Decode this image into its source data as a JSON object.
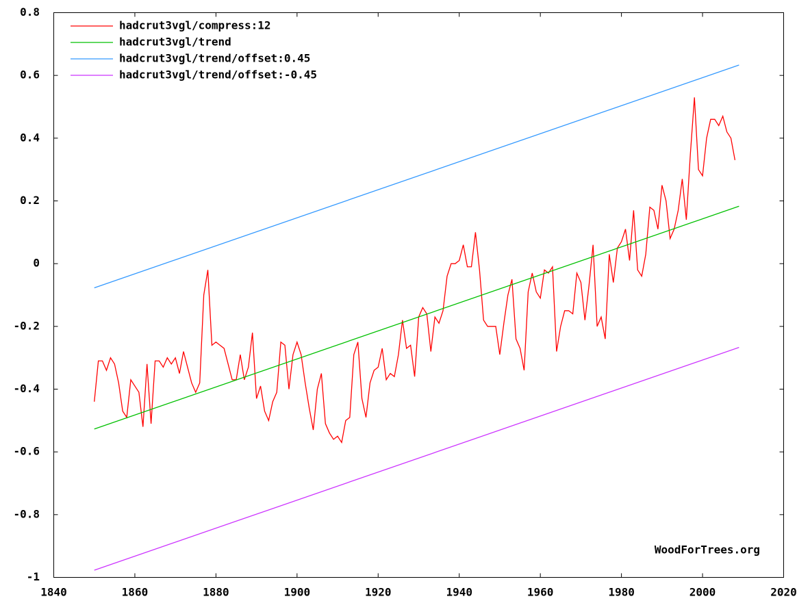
{
  "chart_data": {
    "type": "line",
    "watermark": "WoodForTrees.org",
    "xlim": [
      1840,
      2020
    ],
    "xticks": [
      1840,
      1860,
      1880,
      1900,
      1920,
      1940,
      1960,
      1980,
      2000,
      2020
    ],
    "ylim": [
      -1,
      0.8
    ],
    "yticks": [
      -1,
      -0.8,
      -0.6,
      -0.4,
      -0.2,
      0,
      0.2,
      0.4,
      0.6,
      0.8
    ],
    "grid": false,
    "legend": "top-left",
    "series": [
      {
        "name": "hadcrut3vgl/compress:12",
        "color": "#ff0000",
        "x": [
          1850,
          1851,
          1852,
          1853,
          1854,
          1855,
          1856,
          1857,
          1858,
          1859,
          1860,
          1861,
          1862,
          1863,
          1864,
          1865,
          1866,
          1867,
          1868,
          1869,
          1870,
          1871,
          1872,
          1873,
          1874,
          1875,
          1876,
          1877,
          1878,
          1879,
          1880,
          1881,
          1882,
          1883,
          1884,
          1885,
          1886,
          1887,
          1888,
          1889,
          1890,
          1891,
          1892,
          1893,
          1894,
          1895,
          1896,
          1897,
          1898,
          1899,
          1900,
          1901,
          1902,
          1903,
          1904,
          1905,
          1906,
          1907,
          1908,
          1909,
          1910,
          1911,
          1912,
          1913,
          1914,
          1915,
          1916,
          1917,
          1918,
          1919,
          1920,
          1921,
          1922,
          1923,
          1924,
          1925,
          1926,
          1927,
          1928,
          1929,
          1930,
          1931,
          1932,
          1933,
          1934,
          1935,
          1936,
          1937,
          1938,
          1939,
          1940,
          1941,
          1942,
          1943,
          1944,
          1945,
          1946,
          1947,
          1948,
          1949,
          1950,
          1951,
          1952,
          1953,
          1954,
          1955,
          1956,
          1957,
          1958,
          1959,
          1960,
          1961,
          1962,
          1963,
          1964,
          1965,
          1966,
          1967,
          1968,
          1969,
          1970,
          1971,
          1972,
          1973,
          1974,
          1975,
          1976,
          1977,
          1978,
          1979,
          1980,
          1981,
          1982,
          1983,
          1984,
          1985,
          1986,
          1987,
          1988,
          1989,
          1990,
          1991,
          1992,
          1993,
          1994,
          1995,
          1996,
          1997,
          1998,
          1999,
          2000,
          2001,
          2002,
          2003,
          2004,
          2005,
          2006,
          2007,
          2008
        ],
        "values": [
          -0.44,
          -0.31,
          -0.31,
          -0.34,
          -0.3,
          -0.32,
          -0.38,
          -0.47,
          -0.49,
          -0.37,
          -0.39,
          -0.41,
          -0.52,
          -0.32,
          -0.51,
          -0.31,
          -0.31,
          -0.33,
          -0.3,
          -0.32,
          -0.3,
          -0.35,
          -0.28,
          -0.33,
          -0.38,
          -0.41,
          -0.38,
          -0.1,
          -0.02,
          -0.26,
          -0.25,
          -0.26,
          -0.27,
          -0.32,
          -0.37,
          -0.37,
          -0.29,
          -0.37,
          -0.33,
          -0.22,
          -0.43,
          -0.39,
          -0.47,
          -0.5,
          -0.44,
          -0.41,
          -0.25,
          -0.26,
          -0.4,
          -0.29,
          -0.25,
          -0.29,
          -0.38,
          -0.46,
          -0.53,
          -0.4,
          -0.35,
          -0.51,
          -0.54,
          -0.56,
          -0.55,
          -0.57,
          -0.5,
          -0.49,
          -0.29,
          -0.25,
          -0.43,
          -0.49,
          -0.38,
          -0.34,
          -0.33,
          -0.27,
          -0.37,
          -0.35,
          -0.36,
          -0.29,
          -0.18,
          -0.27,
          -0.26,
          -0.36,
          -0.17,
          -0.14,
          -0.16,
          -0.28,
          -0.17,
          -0.19,
          -0.15,
          -0.04,
          0,
          0,
          0.01,
          0.06,
          -0.01,
          -0.01,
          0.1,
          -0.02,
          -0.18,
          -0.2,
          -0.2,
          -0.2,
          -0.29,
          -0.19,
          -0.1,
          -0.05,
          -0.24,
          -0.27,
          -0.34,
          -0.09,
          -0.03,
          -0.09,
          -0.11,
          -0.02,
          -0.03,
          -0.01,
          -0.28,
          -0.2,
          -0.15,
          -0.15,
          -0.16,
          -0.03,
          -0.06,
          -0.18,
          -0.07,
          0.06,
          -0.2,
          -0.17,
          -0.24,
          0.03,
          -0.06,
          0.05,
          0.07,
          0.11,
          0.01,
          0.17,
          -0.02,
          -0.04,
          0.03,
          0.18,
          0.17,
          0.11,
          0.25,
          0.2,
          0.08,
          0.11,
          0.17,
          0.27,
          0.14,
          0.35,
          0.53,
          0.3,
          0.28,
          0.4,
          0.46,
          0.46,
          0.44,
          0.47,
          0.42,
          0.4,
          0.33
        ]
      },
      {
        "name": "hadcrut3vgl/trend",
        "color": "#00c000",
        "x": [
          1850,
          2009
        ],
        "values": [
          -0.527,
          0.183
        ]
      },
      {
        "name": "hadcrut3vgl/trend/offset:0.45",
        "color": "#3399ff",
        "x": [
          1850,
          2009
        ],
        "values": [
          -0.077,
          0.633
        ]
      },
      {
        "name": "hadcrut3vgl/trend/offset:-0.45",
        "color": "#cc33ff",
        "x": [
          1850,
          2009
        ],
        "values": [
          -0.977,
          -0.267
        ]
      }
    ]
  }
}
